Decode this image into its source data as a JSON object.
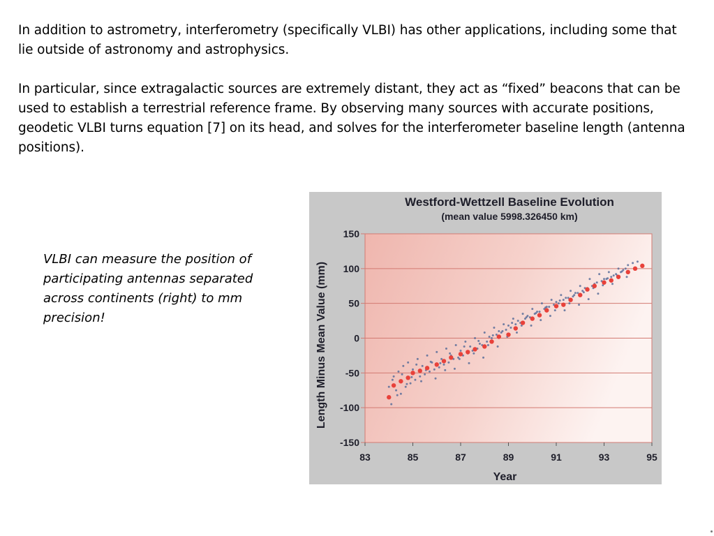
{
  "slide": {
    "paragraph1": "In addition to astrometry, interferometry (specifically VLBI) has other applications, including some that lie outside of astronomy and astrophysics.",
    "paragraph2": "In particular, since extragalactic sources are extremely distant, they act as “fixed” beacons that can be used to establish a terrestrial reference frame. By observing many sources with accurate positions, geodetic VLBI turns equation [7] on its head, and solves for the interferometer baseline length (antenna positions).",
    "caption": "VLBI can measure the position of participating antennas separated across continents (right) to mm precision!"
  },
  "chart_data": {
    "type": "scatter",
    "title": "Westford-Wettzell Baseline Evolution",
    "subtitle": "(mean value 5998.326450 km)",
    "xlabel": "Year",
    "ylabel": "Length Minus Mean Value (mm)",
    "xlim": [
      83,
      95
    ],
    "ylim": [
      -150,
      150
    ],
    "x_ticks": [
      "83",
      "85",
      "87",
      "89",
      "91",
      "93",
      "95"
    ],
    "y_ticks": [
      "150",
      "100",
      "50",
      "0",
      "-50",
      "-100",
      "-150"
    ],
    "grid": "horizontal",
    "colors": {
      "panel": "#c8c8c8",
      "plot_bg": "#f4c9c3",
      "points": "#5b6f9a",
      "trend": "#e8413a",
      "grid": "#d27a72"
    },
    "trend_series": {
      "name": "",
      "x": [
        84.0,
        84.2,
        84.5,
        84.8,
        85.0,
        85.3,
        85.6,
        86.0,
        86.3,
        86.6,
        87.0,
        87.3,
        87.6,
        88.0,
        88.3,
        88.6,
        89.0,
        89.3,
        89.6,
        90.0,
        90.3,
        90.6,
        91.0,
        91.3,
        91.6,
        92.0,
        92.3,
        92.6,
        93.0,
        93.3,
        93.6,
        94.0,
        94.3,
        94.6
      ],
      "y": [
        -85,
        -68,
        -62,
        -57,
        -50,
        -47,
        -43,
        -38,
        -33,
        -28,
        -23,
        -20,
        -16,
        -12,
        -5,
        2,
        5,
        14,
        22,
        28,
        33,
        40,
        46,
        48,
        55,
        62,
        70,
        75,
        80,
        83,
        88,
        95,
        100,
        104
      ]
    },
    "scatter_series": {
      "name": "",
      "x": [
        84.0,
        84.1,
        84.2,
        84.3,
        84.4,
        84.5,
        84.6,
        84.7,
        84.8,
        84.9,
        85.0,
        85.1,
        85.2,
        85.3,
        85.4,
        85.5,
        85.6,
        85.7,
        85.8,
        85.9,
        86.0,
        86.1,
        86.2,
        86.3,
        86.4,
        86.5,
        86.6,
        86.7,
        86.8,
        86.9,
        87.0,
        87.1,
        87.2,
        87.3,
        87.4,
        87.5,
        87.6,
        87.7,
        87.8,
        87.9,
        88.0,
        88.1,
        88.2,
        88.3,
        88.4,
        88.5,
        88.6,
        88.7,
        88.8,
        88.9,
        89.0,
        89.1,
        89.2,
        89.3,
        89.4,
        89.5,
        89.6,
        89.7,
        89.8,
        89.9,
        90.0,
        90.1,
        90.2,
        90.3,
        90.4,
        90.5,
        90.6,
        90.7,
        90.8,
        90.9,
        91.0,
        91.1,
        91.2,
        91.3,
        91.4,
        91.5,
        91.6,
        91.7,
        91.8,
        91.9,
        92.0,
        92.1,
        92.2,
        92.3,
        92.4,
        92.5,
        92.6,
        92.7,
        92.8,
        92.9,
        93.0,
        93.1,
        93.2,
        93.3,
        93.4,
        93.5,
        93.6,
        93.7,
        93.8,
        93.9,
        94.0,
        94.2,
        94.4,
        84.15,
        84.35,
        84.55,
        84.75,
        84.95,
        85.15,
        85.35,
        85.55,
        85.75,
        85.95,
        86.15,
        86.35,
        86.55,
        86.75,
        86.95,
        87.15,
        87.35,
        87.55,
        87.75,
        87.95,
        88.15,
        88.35,
        88.55,
        88.75,
        88.95,
        89.15,
        89.35,
        89.55,
        89.75,
        89.95,
        90.15,
        90.35,
        90.55,
        90.75,
        90.95,
        91.15,
        91.35,
        91.55,
        91.75,
        91.95,
        92.15,
        92.35,
        92.55,
        92.75,
        92.95,
        93.15,
        93.35,
        93.55,
        93.75,
        93.95
      ],
      "y": [
        -70,
        -95,
        -55,
        -75,
        -48,
        -80,
        -40,
        -70,
        -35,
        -65,
        -45,
        -60,
        -30,
        -55,
        -40,
        -52,
        -25,
        -48,
        -35,
        -45,
        -20,
        -42,
        -30,
        -38,
        -15,
        -35,
        -25,
        -30,
        -10,
        -28,
        -18,
        -25,
        -5,
        -22,
        -12,
        -18,
        0,
        -15,
        -8,
        -10,
        8,
        -5,
        2,
        0,
        15,
        5,
        10,
        8,
        20,
        12,
        18,
        15,
        28,
        20,
        25,
        22,
        35,
        28,
        32,
        30,
        42,
        35,
        38,
        38,
        50,
        42,
        45,
        45,
        55,
        48,
        52,
        50,
        62,
        55,
        58,
        58,
        68,
        60,
        65,
        65,
        75,
        68,
        72,
        72,
        85,
        75,
        78,
        80,
        92,
        82,
        85,
        85,
        95,
        88,
        90,
        92,
        100,
        95,
        98,
        100,
        105,
        108,
        110,
        -60,
        -82,
        -52,
        -66,
        -56,
        -38,
        -62,
        -46,
        -34,
        -58,
        -36,
        -46,
        -22,
        -44,
        -30,
        -12,
        -36,
        -22,
        -4,
        -28,
        -10,
        4,
        -12,
        10,
        2,
        22,
        8,
        18,
        30,
        18,
        36,
        26,
        44,
        32,
        40,
        54,
        40,
        50,
        62,
        48,
        66,
        56,
        72,
        64,
        76,
        86,
        78,
        90,
        96,
        88
      ]
    }
  }
}
